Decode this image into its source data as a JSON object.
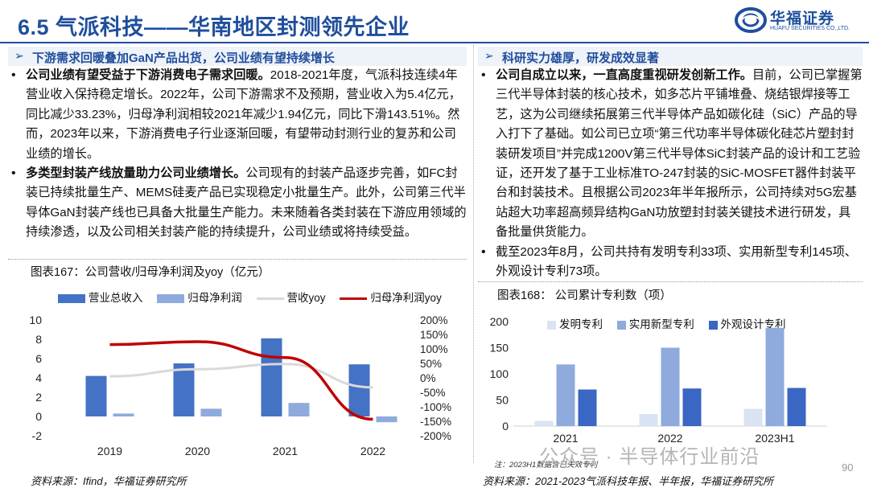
{
  "page_title": "6.5 气派科技——华南地区封测领先企业",
  "logo": {
    "name_cn": "华福证券",
    "name_en": "HUAFU SECURITIES CO.,LTD."
  },
  "left": {
    "section_header": "下游需求回暖叠加GaN产品出货，公司业绩有望持续增长",
    "bullets": [
      {
        "bold": "公司业绩有望受益于下游消费电子需求回暖。",
        "text": "2018-2021年度，气派科技连续4年营业收入保持稳定增长。2022年，公司下游需求不及预期，营业收入为5.4亿元，同比减少33.23%，归母净利润相较2021年减少1.94亿元，同比下滑143.51%。然而，2023年以来，下游消费电子行业逐渐回暖，有望带动封测行业的复苏和公司业绩的增长。"
      },
      {
        "bold": "多类型封装产线放量助力公司业绩增长。",
        "text": "公司现有的封装产品逐步完善，如FC封装已持续批量生产、MEMS硅麦产品已实现稳定小批量生产。此外，公司第三代半导体GaN封装产线也已具备大批量生产能力。未来随着各类封装在下游应用领域的持续渗透，以及公司相关封装产能的持续提升，公司业绩或将持续受益。"
      }
    ],
    "chart_title": "图表167：公司营收/归母净利润及yoy（亿元）",
    "source": "资料来源：Ifind，华福证券研究所"
  },
  "right": {
    "section_header": "科研实力雄厚，研发成效显著",
    "bullets": [
      {
        "bold": "公司自成立以来，一直高度重视研发创新工作。",
        "text": "目前，公司已掌握第三代半导体封装的核心技术，如多芯片平铺堆叠、烧结银焊接等工艺，这为公司继续拓展第三代半导体产品如碳化硅（SiC）产品的导入打下了基础。如公司已立项“第三代功率半导体碳化硅芯片塑封封装研发项目”并完成1200V第三代半导体SiC封装产品的设计和工艺验证，还开发了基于工业标准TO-247封装的SiC-MOSFET器件封装平台和封装技术。且根据公司2023年半年报所示，公司持续对5G宏基站超大功率超高频异结构GaN功放塑封封装关键技术进行研发，具备批量供货能力。"
      },
      {
        "bold": "",
        "text": "截至2023年8月，公司共持有发明专利33项、实用新型专利145项、外观设计专利73项。"
      }
    ],
    "chart_title": "图表168：  公司累计专利数（项）",
    "note": "注：2023H1数据含已失效专利",
    "source": "资料来源：2021-2023气派科技年报、半年报，华福证券研究所"
  },
  "watermark": "公众号 · 半导体行业前沿",
  "page_number": "90",
  "chart_data": [
    {
      "type": "bar",
      "title": "图表167：公司营收/归母净利润及yoy（亿元）",
      "categories": [
        "2019",
        "2020",
        "2021",
        "2022"
      ],
      "series": [
        {
          "name": "营业总收入",
          "kind": "bar",
          "axis": "left",
          "color": "#4472c4",
          "values": [
            4.2,
            5.5,
            8.1,
            5.4
          ]
        },
        {
          "name": "归母净利润",
          "kind": "bar",
          "axis": "left",
          "color": "#8faadc",
          "values": [
            0.3,
            0.8,
            1.4,
            -0.6
          ]
        },
        {
          "name": "营收yoy",
          "kind": "line",
          "axis": "right",
          "color": "#d9d9d9",
          "values": [
            5,
            30,
            48,
            -33
          ]
        },
        {
          "name": "归母净利润yoy",
          "kind": "line",
          "axis": "right",
          "color": "#c00000",
          "values": [
            115,
            125,
            70,
            -143
          ]
        }
      ],
      "ylim_left": [
        -2,
        10
      ],
      "yticks_left": [
        "-2",
        "0",
        "2",
        "4",
        "6",
        "8",
        "10"
      ],
      "ylim_right": [
        -200,
        200
      ],
      "yticks_right": [
        "-200%",
        "-150%",
        "-100%",
        "-50%",
        "0%",
        "50%",
        "100%",
        "150%",
        "200%"
      ],
      "legend": "top"
    },
    {
      "type": "bar",
      "title": "图表168：  公司累计专利数（项）",
      "categories": [
        "2021",
        "2022",
        "2023H1"
      ],
      "series": [
        {
          "name": "发明专利",
          "color": "#dae3f3",
          "values": [
            10,
            23,
            33
          ]
        },
        {
          "name": "实用新型专利",
          "color": "#8faadc",
          "values": [
            118,
            150,
            188
          ]
        },
        {
          "name": "外观设计专利",
          "color": "#3a66c4",
          "values": [
            70,
            72,
            73
          ]
        }
      ],
      "ylim": [
        0,
        200
      ],
      "yticks": [
        "0",
        "50",
        "100",
        "150",
        "200"
      ],
      "legend": "top"
    }
  ]
}
